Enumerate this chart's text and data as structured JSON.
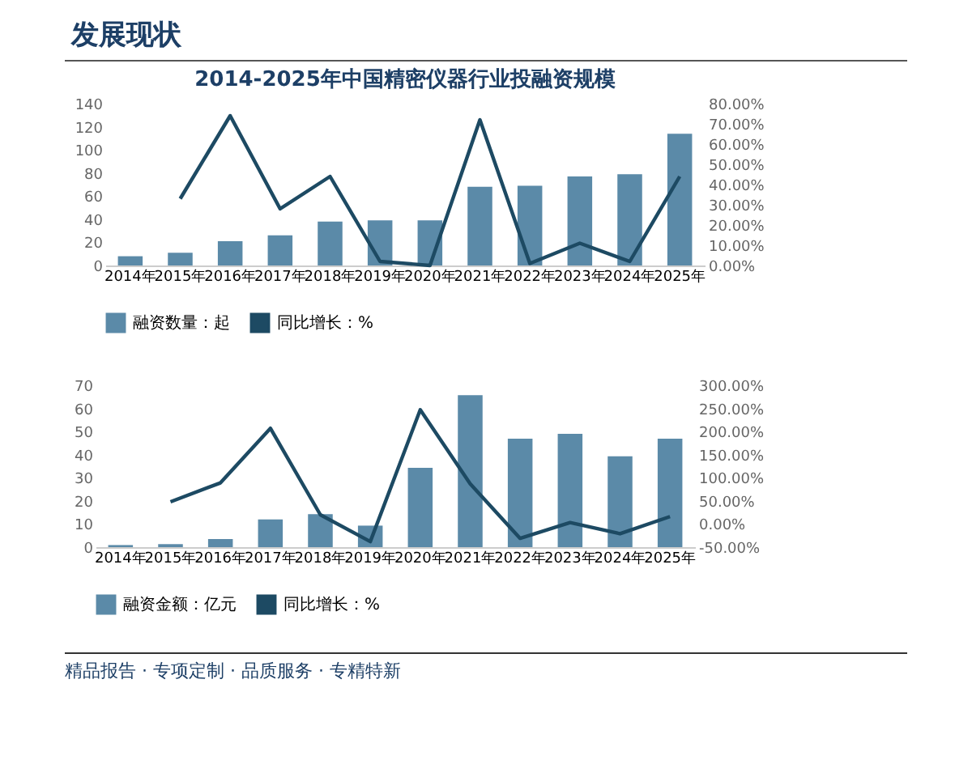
{
  "chart_data": [
    {
      "type": "bar",
      "title": "2014-2025年中国精密仪器行业投融资规模",
      "annotations": [
        "发展现状"
      ],
      "categories": [
        "2014年",
        "2015年",
        "2016年",
        "2017年",
        "2018年",
        "2019年",
        "2020年",
        "2021年",
        "2022年",
        "2023年",
        "2024年",
        "2025年"
      ],
      "series": [
        {
          "name": "融资数量：起",
          "color": "#5b8aa8",
          "values": [
            8,
            11,
            21,
            26,
            38,
            39,
            39,
            68,
            69,
            77,
            79,
            114
          ]
        },
        {
          "name": "同比增长：%",
          "type": "line",
          "axis": "y2",
          "color": "#1d4a63",
          "values": [
            null,
            33,
            74,
            28,
            44,
            2,
            0,
            72,
            1,
            11,
            2,
            44
          ]
        }
      ],
      "ylim": [
        0,
        140
      ],
      "yticks": [
        0,
        20,
        40,
        60,
        80,
        100,
        120,
        140
      ],
      "y2lim": [
        0,
        80
      ],
      "y2ticks": [
        {
          "value": 0,
          "label": "0.00%"
        },
        {
          "value": 10,
          "label": "10.00%"
        },
        {
          "value": 20,
          "label": "20.00%"
        },
        {
          "value": 30,
          "label": "30.00%"
        },
        {
          "value": 40,
          "label": "40.00%"
        },
        {
          "value": 50,
          "label": "50.00%"
        },
        {
          "value": 60,
          "label": "60.00%"
        },
        {
          "value": 70,
          "label": "70.00%"
        },
        {
          "value": 80,
          "label": "80.00%"
        }
      ],
      "legend": "bottom",
      "grid": false,
      "marker": "none",
      "line_style": "solid"
    },
    {
      "type": "bar",
      "annotations": [
        "精品报告 · 专项定制 · 品质服务 · 专精特新"
      ],
      "categories": [
        "2014年",
        "2015年",
        "2016年",
        "2017年",
        "2018年",
        "2019年",
        "2020年",
        "2021年",
        "2022年",
        "2023年",
        "2024年",
        "2025年"
      ],
      "series": [
        {
          "name": "融资金额：亿元",
          "color": "#5b8aa8",
          "values": [
            0.9,
            1.3,
            3.5,
            12,
            14.3,
            9.3,
            34.3,
            65.7,
            46.9,
            49,
            39.3,
            46.9
          ]
        },
        {
          "name": "同比增长：%",
          "type": "line",
          "axis": "y2",
          "color": "#1d4a63",
          "values": [
            null,
            48,
            89,
            207,
            20,
            -38,
            247,
            87,
            -31,
            3,
            -21,
            16
          ]
        }
      ],
      "ylim": [
        0,
        70
      ],
      "yticks": [
        0,
        10,
        20,
        30,
        40,
        50,
        60,
        70
      ],
      "y2lim": [
        -50,
        300
      ],
      "y2ticks": [
        {
          "value": -50,
          "label": "-50.00%"
        },
        {
          "value": 0,
          "label": "0.00%"
        },
        {
          "value": 50,
          "label": "50.00%"
        },
        {
          "value": 100,
          "label": "100.00%"
        },
        {
          "value": 150,
          "label": "150.00%"
        },
        {
          "value": 200,
          "label": "200.00%"
        },
        {
          "value": 250,
          "label": "250.00%"
        },
        {
          "value": 300,
          "label": "300.00%"
        }
      ],
      "legend": "bottom",
      "grid": false,
      "marker": "none",
      "line_style": "solid"
    }
  ]
}
